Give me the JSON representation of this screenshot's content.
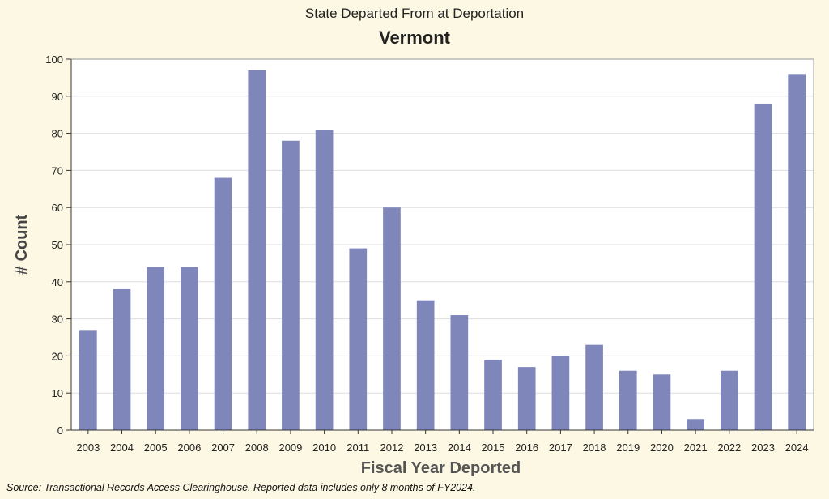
{
  "chart_data": {
    "type": "bar",
    "title": "State Departed From at Deportation",
    "subtitle": "Vermont",
    "xlabel": "Fiscal Year Deported",
    "ylabel": "# Count",
    "ylim": [
      0,
      100
    ],
    "yticks": [
      0,
      10,
      20,
      30,
      40,
      50,
      60,
      70,
      80,
      90,
      100
    ],
    "grid": true,
    "bar_color": "#7f86ba",
    "categories": [
      "2003",
      "2004",
      "2005",
      "2006",
      "2007",
      "2008",
      "2009",
      "2010",
      "2011",
      "2012",
      "2013",
      "2014",
      "2015",
      "2016",
      "2017",
      "2018",
      "2019",
      "2020",
      "2021",
      "2022",
      "2023",
      "2024"
    ],
    "values": [
      27,
      38,
      44,
      44,
      68,
      97,
      78,
      81,
      49,
      60,
      35,
      31,
      19,
      17,
      20,
      23,
      16,
      15,
      3,
      16,
      88,
      96
    ]
  },
  "source_note": "Source: Transactional Records Access Clearinghouse. Reported data includes only 8 months of FY2024."
}
